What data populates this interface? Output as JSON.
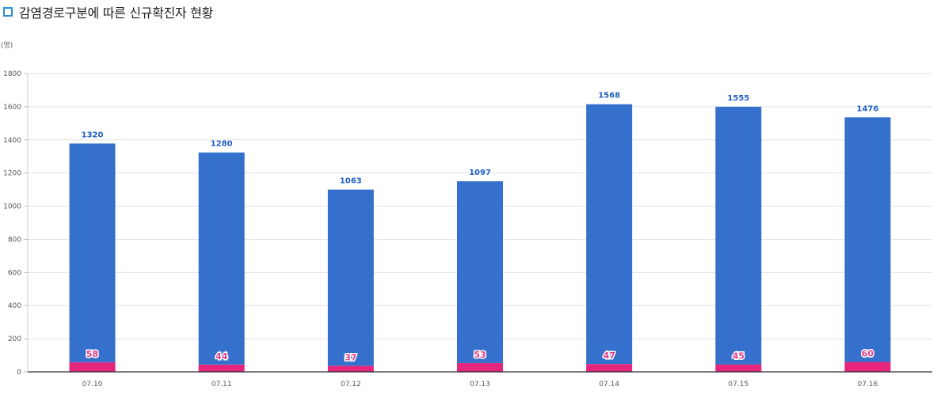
{
  "header": {
    "title": "감염경로구분에 따른 신규확진자 현황"
  },
  "chart_data": {
    "type": "bar",
    "stacked": true,
    "title": "감염경로구분에 따른 신규확진자 현황",
    "ylabel": "(명)",
    "xlabel": "",
    "categories": [
      "07.10",
      "07.11",
      "07.12",
      "07.13",
      "07.14",
      "07.15",
      "07.16"
    ],
    "series": [
      {
        "color": "#e5267c",
        "values": [
          58,
          44,
          37,
          53,
          47,
          45,
          60
        ]
      },
      {
        "color": "#3571cc",
        "values": [
          1320,
          1280,
          1063,
          1097,
          1568,
          1555,
          1476
        ]
      }
    ],
    "ylim": [
      0,
      1800
    ],
    "yticks": [
      0,
      200,
      400,
      600,
      800,
      1000,
      1200,
      1400,
      1600,
      1800
    ],
    "grid": true
  }
}
